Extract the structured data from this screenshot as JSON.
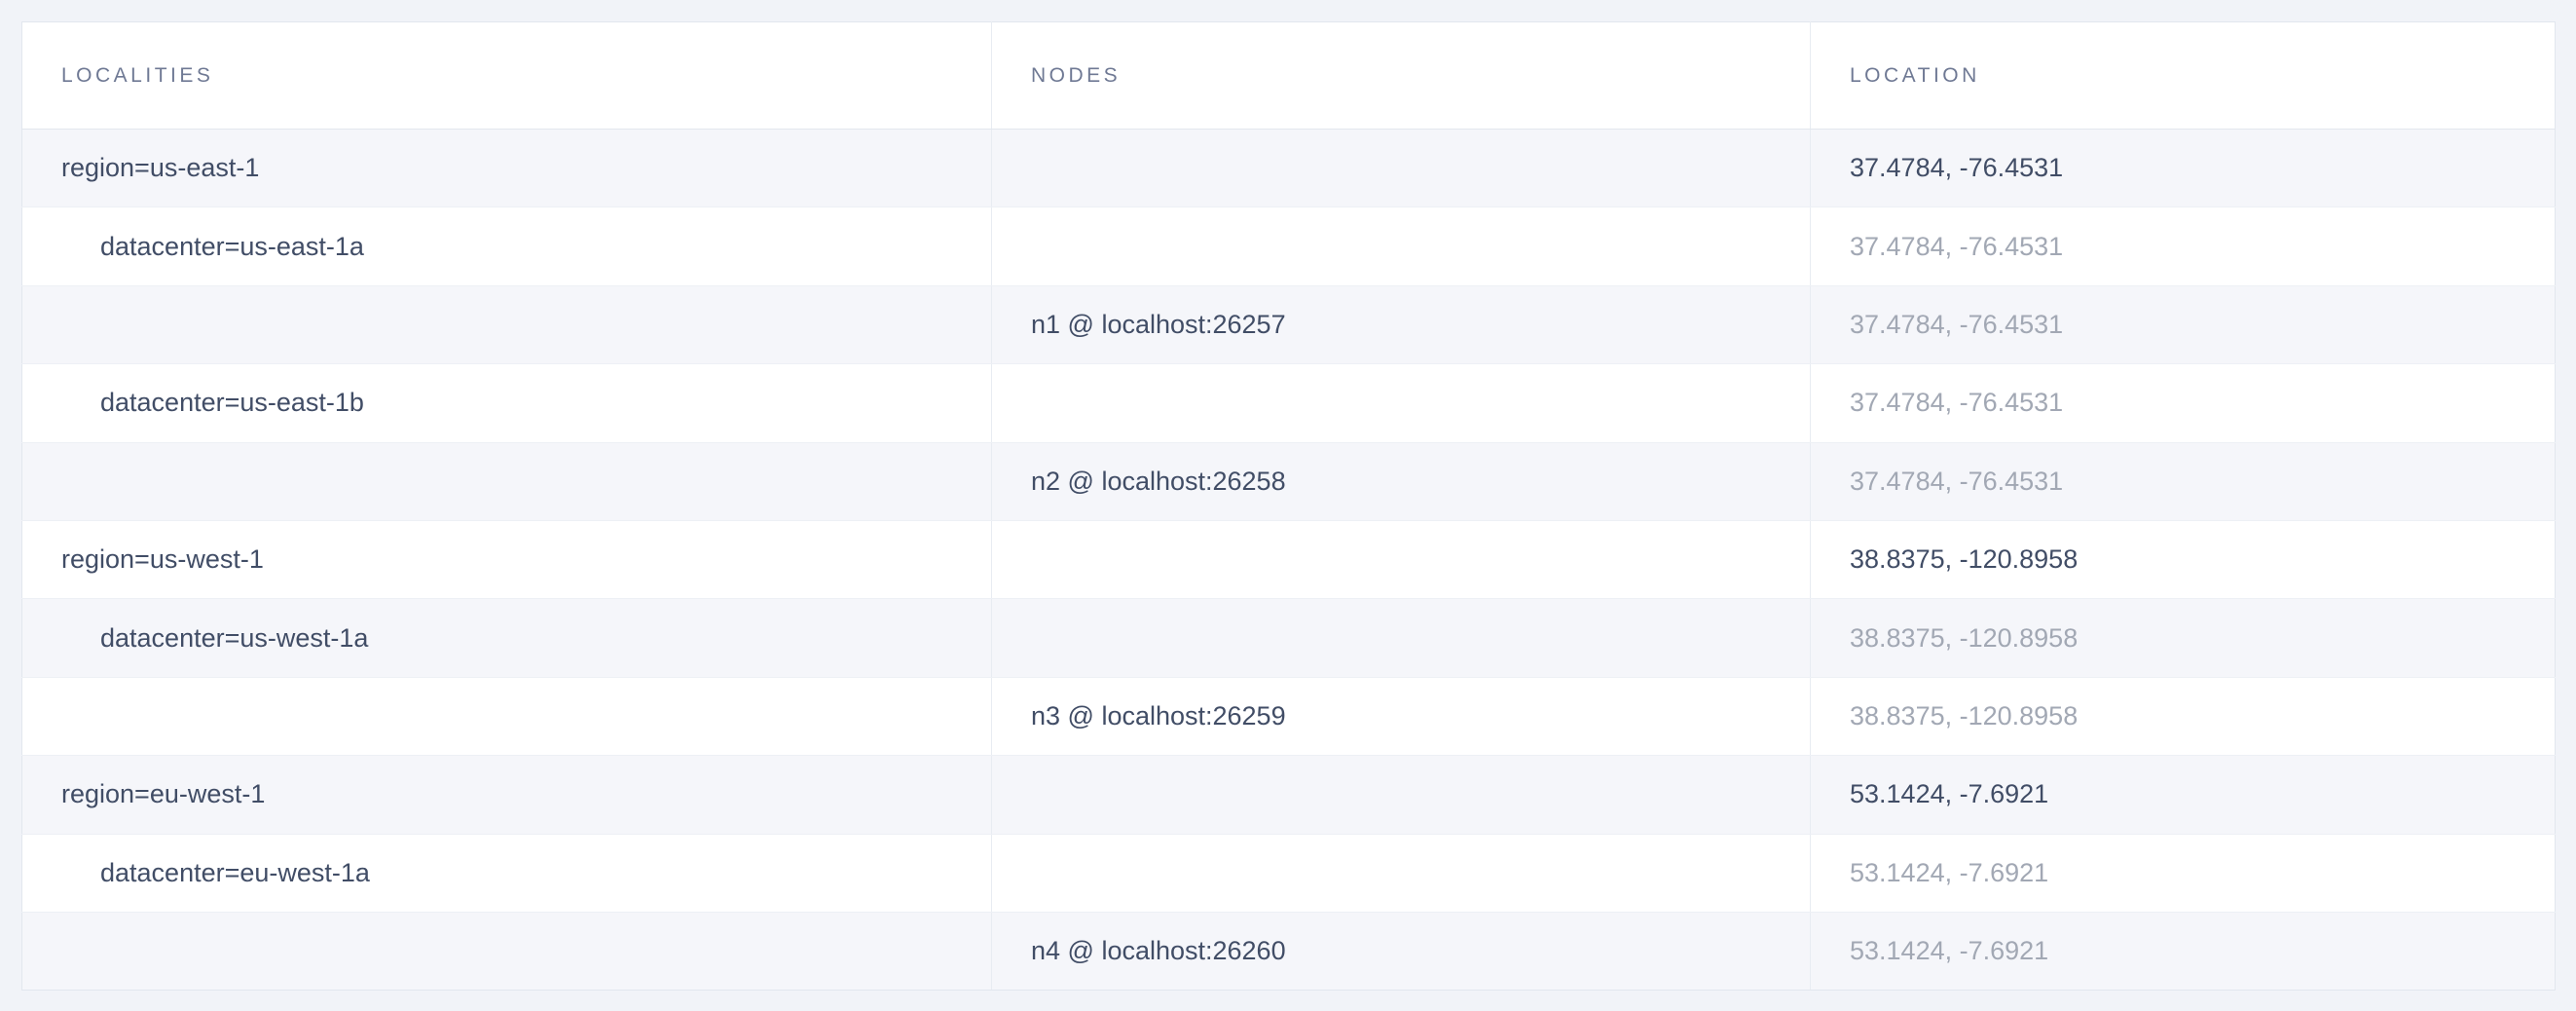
{
  "table": {
    "columns": [
      "LOCALITIES",
      "NODES",
      "LOCATION"
    ],
    "rows": [
      {
        "type": "region",
        "locality": "region=us-east-1",
        "node": "",
        "location": "37.4784, -76.4531"
      },
      {
        "type": "datacenter",
        "locality": "datacenter=us-east-1a",
        "node": "",
        "location": "37.4784, -76.4531"
      },
      {
        "type": "node",
        "locality": "",
        "node": "n1 @ localhost:26257",
        "location": "37.4784, -76.4531"
      },
      {
        "type": "datacenter",
        "locality": "datacenter=us-east-1b",
        "node": "",
        "location": "37.4784, -76.4531"
      },
      {
        "type": "node",
        "locality": "",
        "node": "n2 @ localhost:26258",
        "location": "37.4784, -76.4531"
      },
      {
        "type": "region",
        "locality": "region=us-west-1",
        "node": "",
        "location": "38.8375, -120.8958"
      },
      {
        "type": "datacenter",
        "locality": "datacenter=us-west-1a",
        "node": "",
        "location": "38.8375, -120.8958"
      },
      {
        "type": "node",
        "locality": "",
        "node": "n3 @ localhost:26259",
        "location": "38.8375, -120.8958"
      },
      {
        "type": "region",
        "locality": "region=eu-west-1",
        "node": "",
        "location": "53.1424, -7.6921"
      },
      {
        "type": "datacenter",
        "locality": "datacenter=eu-west-1a",
        "node": "",
        "location": "53.1424, -7.6921"
      },
      {
        "type": "node",
        "locality": "",
        "node": "n4 @ localhost:26260",
        "location": "53.1424, -7.6921"
      }
    ]
  },
  "colors": {
    "page_background": "#f1f3f8",
    "row_shaded_background": "#f5f6fa",
    "row_plain_background": "#ffffff",
    "border": "#e2e7ee",
    "header_text": "#6f7994",
    "primary_text": "#414d66",
    "muted_text": "#a2a8b4"
  }
}
